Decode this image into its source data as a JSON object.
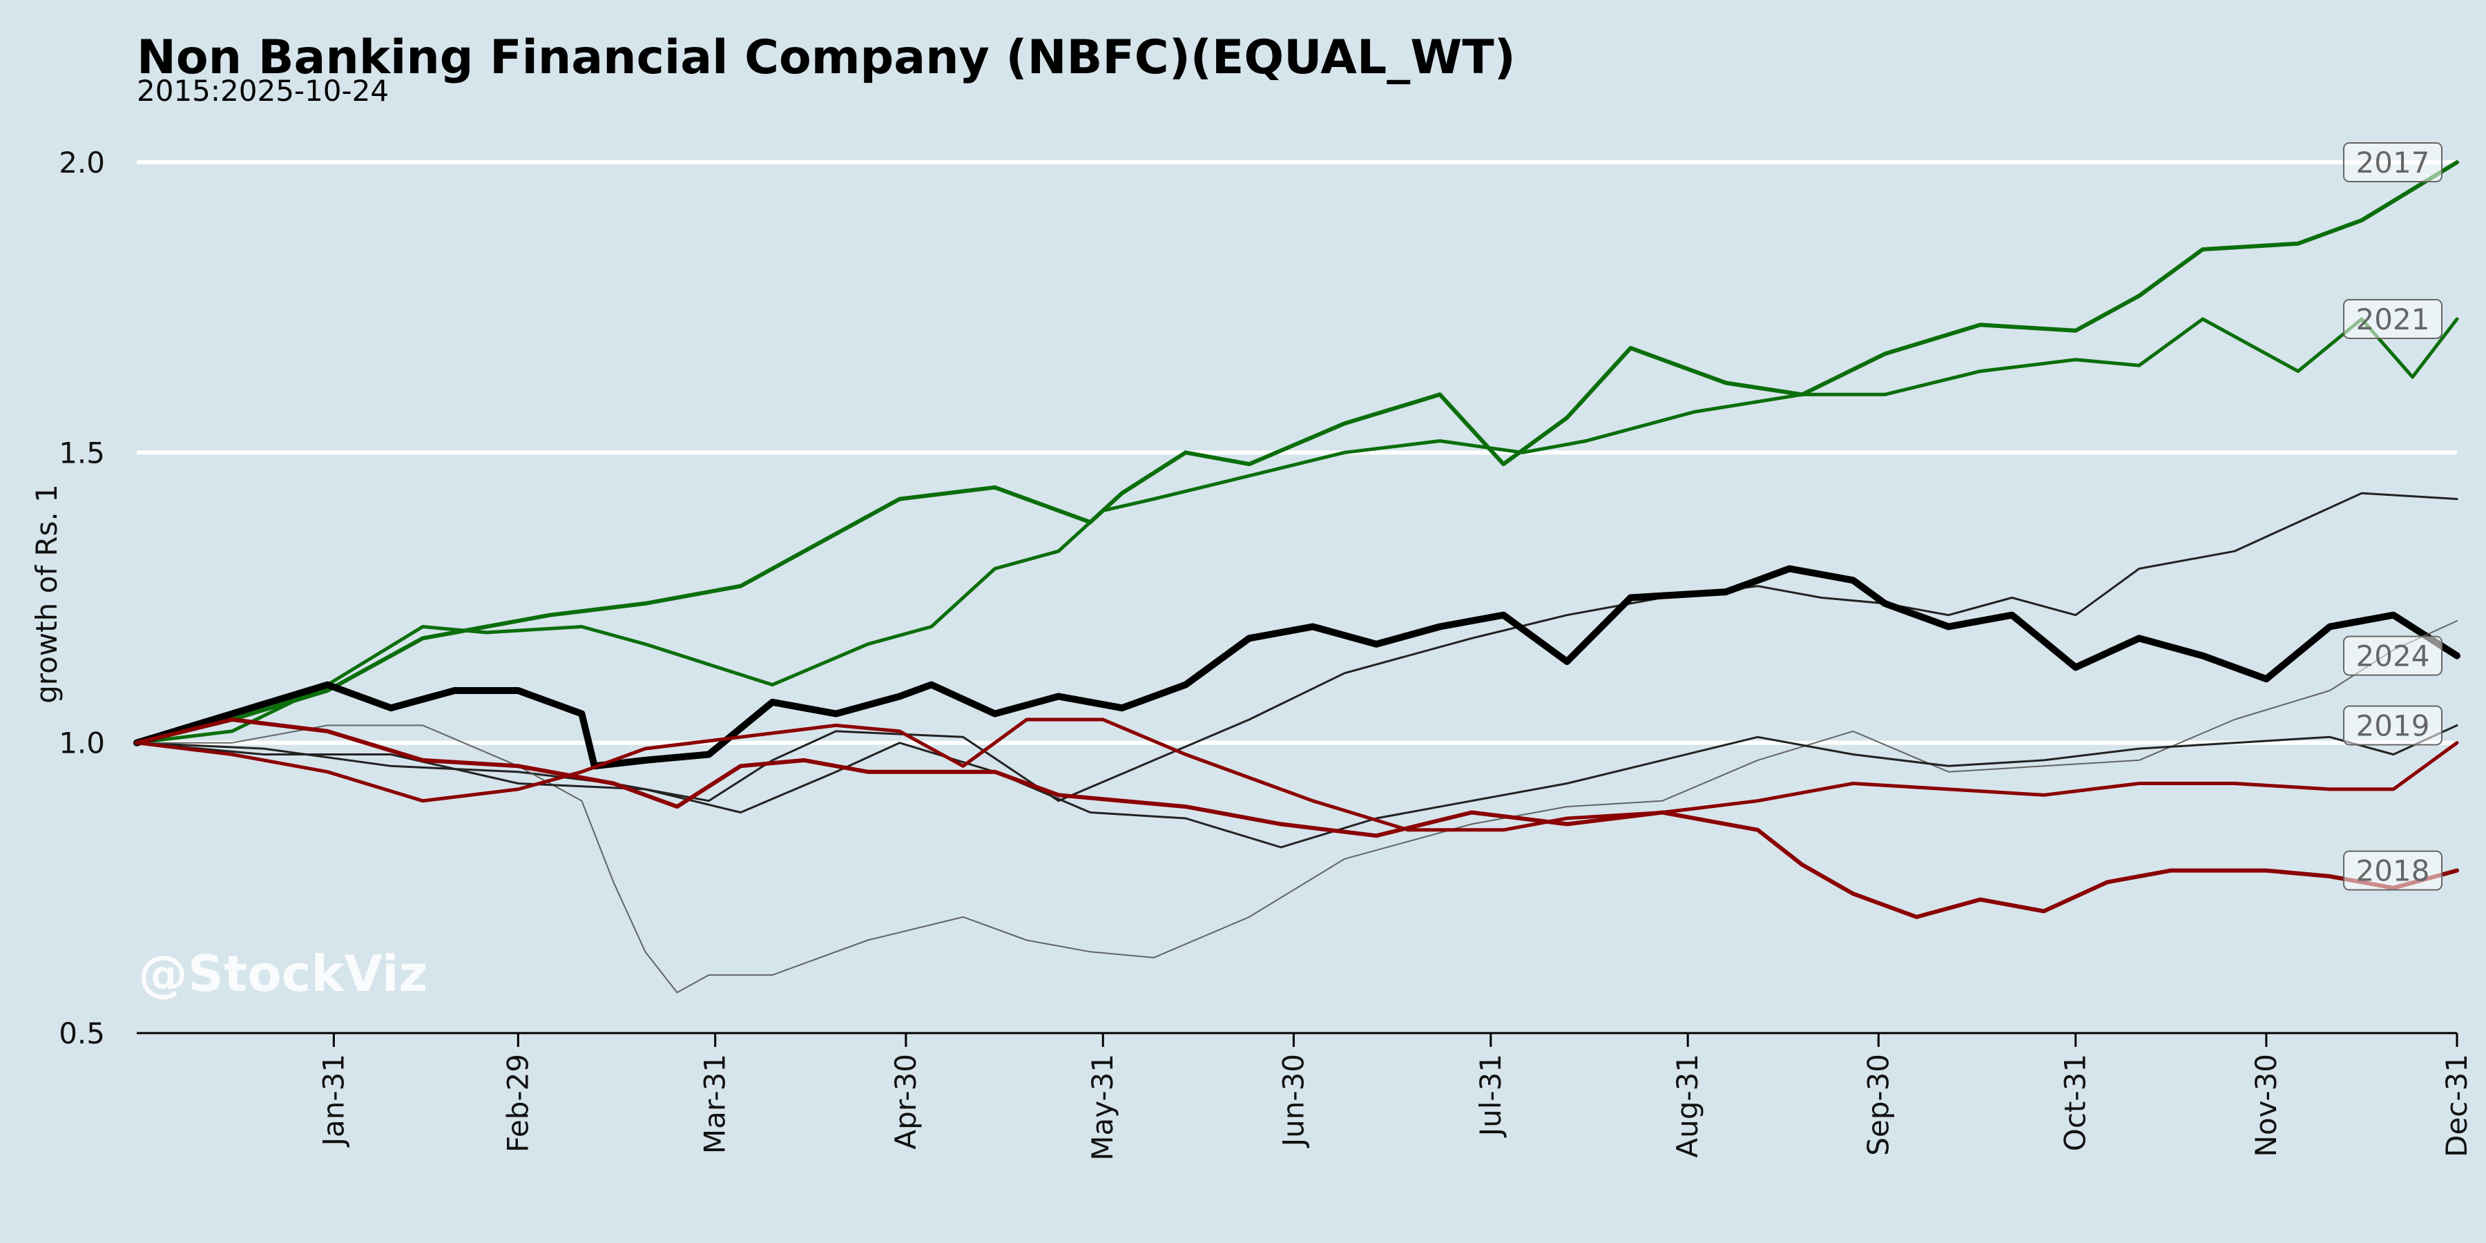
{
  "chart_data": {
    "type": "line",
    "title": "Non Banking Financial Company (NBFC)(EQUAL_WT)",
    "subtitle": "2015:2025-10-24",
    "ylabel": "growth of Rs. 1",
    "xlabel": "",
    "watermark": "@StockViz",
    "ylim": [
      0.5,
      2.05
    ],
    "yticks": [
      0.5,
      1.0,
      1.5,
      2.0
    ],
    "ytick_labels": [
      "0.5",
      "1.0",
      "1.5",
      "2.0"
    ],
    "gridlines": [
      1.0,
      1.5,
      2.0
    ],
    "xlim": [
      0,
      365
    ],
    "xticks": [
      31,
      60,
      91,
      121,
      152,
      182,
      213,
      244,
      274,
      305,
      335,
      365
    ],
    "xtick_labels": [
      "Jan-31",
      "Feb-29",
      "Mar-31",
      "Apr-30",
      "May-31",
      "Jun-30",
      "Jul-31",
      "Aug-31",
      "Sep-30",
      "Oct-31",
      "Nov-30",
      "Dec-31"
    ],
    "series": [
      {
        "name": "2017",
        "label_value": 2.0,
        "color": "#0b6e0b",
        "width": 6,
        "opacity": 1,
        "x": [
          0,
          15,
          30,
          45,
          55,
          65,
          80,
          95,
          110,
          120,
          135,
          150,
          155,
          165,
          175,
          190,
          205,
          215,
          225,
          235,
          250,
          262,
          275,
          290,
          305,
          315,
          325,
          340,
          350,
          365
        ],
        "y": [
          1.0,
          1.04,
          1.09,
          1.18,
          1.2,
          1.22,
          1.24,
          1.27,
          1.36,
          1.42,
          1.44,
          1.38,
          1.43,
          1.5,
          1.48,
          1.55,
          1.6,
          1.48,
          1.56,
          1.68,
          1.62,
          1.6,
          1.67,
          1.72,
          1.71,
          1.77,
          1.85,
          1.86,
          1.9,
          2.0
        ]
      },
      {
        "name": "2021",
        "label_value": 1.73,
        "color": "#0b6e0b",
        "width": 5,
        "opacity": 1,
        "x": [
          0,
          15,
          30,
          45,
          55,
          70,
          80,
          100,
          115,
          125,
          135,
          145,
          152,
          160,
          175,
          190,
          205,
          218,
          228,
          245,
          262,
          275,
          290,
          305,
          315,
          325,
          340,
          350,
          358,
          365
        ],
        "y": [
          1.0,
          1.02,
          1.1,
          1.2,
          1.19,
          1.2,
          1.17,
          1.1,
          1.17,
          1.2,
          1.3,
          1.33,
          1.4,
          1.42,
          1.46,
          1.5,
          1.52,
          1.5,
          1.52,
          1.57,
          1.6,
          1.6,
          1.64,
          1.66,
          1.65,
          1.73,
          1.64,
          1.73,
          1.63,
          1.73
        ]
      },
      {
        "name": "",
        "label_value": 1.42,
        "color": "#222222",
        "width": 3,
        "opacity": 1,
        "x": [
          0,
          20,
          40,
          60,
          75,
          90,
          100,
          110,
          130,
          145,
          160,
          175,
          190,
          210,
          225,
          240,
          255,
          265,
          275,
          285,
          295,
          305,
          315,
          330,
          340,
          350,
          365
        ],
        "y": [
          1.0,
          0.99,
          0.96,
          0.95,
          0.93,
          0.9,
          0.97,
          1.02,
          1.01,
          0.9,
          0.97,
          1.04,
          1.12,
          1.18,
          1.22,
          1.25,
          1.27,
          1.25,
          1.24,
          1.22,
          1.25,
          1.22,
          1.3,
          1.33,
          1.38,
          1.43,
          1.42
        ]
      },
      {
        "name": "2024",
        "label_value": 1.15,
        "color": "#000000",
        "width": 10,
        "opacity": 1,
        "x": [
          0,
          15,
          30,
          40,
          50,
          60,
          70,
          72,
          80,
          90,
          100,
          110,
          120,
          125,
          135,
          145,
          155,
          165,
          175,
          185,
          195,
          205,
          215,
          225,
          235,
          250,
          260,
          270,
          275,
          285,
          295,
          305,
          315,
          325,
          335,
          345,
          355,
          365
        ],
        "y": [
          1.0,
          1.05,
          1.1,
          1.06,
          1.09,
          1.09,
          1.05,
          0.96,
          0.97,
          0.98,
          1.07,
          1.05,
          1.08,
          1.1,
          1.05,
          1.08,
          1.06,
          1.1,
          1.18,
          1.2,
          1.17,
          1.2,
          1.22,
          1.14,
          1.25,
          1.26,
          1.3,
          1.28,
          1.24,
          1.2,
          1.22,
          1.13,
          1.18,
          1.15,
          1.11,
          1.2,
          1.22,
          1.15
        ]
      },
      {
        "name": "",
        "label_value": 1.21,
        "color": "#555555",
        "width": 2,
        "opacity": 0.9,
        "x": [
          0,
          15,
          30,
          45,
          60,
          70,
          75,
          80,
          85,
          90,
          100,
          115,
          130,
          140,
          150,
          160,
          175,
          190,
          210,
          225,
          240,
          255,
          270,
          285,
          300,
          315,
          330,
          345,
          355,
          365
        ],
        "y": [
          1.0,
          1.0,
          1.03,
          1.03,
          0.96,
          0.9,
          0.76,
          0.64,
          0.57,
          0.6,
          0.6,
          0.66,
          0.7,
          0.66,
          0.64,
          0.63,
          0.7,
          0.8,
          0.86,
          0.89,
          0.9,
          0.97,
          1.02,
          0.95,
          0.96,
          0.97,
          1.04,
          1.09,
          1.16,
          1.21
        ]
      },
      {
        "name": "2019",
        "label_value": 1.03,
        "color": "#222222",
        "width": 3,
        "opacity": 1,
        "x": [
          0,
          20,
          40,
          60,
          80,
          95,
          110,
          120,
          135,
          150,
          165,
          180,
          195,
          210,
          225,
          240,
          255,
          270,
          285,
          300,
          315,
          330,
          345,
          355,
          365
        ],
        "y": [
          1.0,
          0.98,
          0.98,
          0.93,
          0.92,
          0.88,
          0.95,
          1.0,
          0.95,
          0.88,
          0.87,
          0.82,
          0.87,
          0.9,
          0.93,
          0.97,
          1.01,
          0.98,
          0.96,
          0.97,
          0.99,
          1.0,
          1.01,
          0.98,
          1.03
        ]
      },
      {
        "name": "",
        "label_value": 1.0,
        "color": "#8b0000",
        "width": 5,
        "opacity": 1,
        "x": [
          0,
          15,
          30,
          45,
          60,
          70,
          80,
          95,
          110,
          120,
          130,
          140,
          152,
          165,
          175,
          185,
          200,
          215,
          225,
          240,
          255,
          270,
          285,
          300,
          315,
          330,
          345,
          355,
          365
        ],
        "y": [
          1.0,
          0.98,
          0.95,
          0.9,
          0.92,
          0.95,
          0.99,
          1.01,
          1.03,
          1.02,
          0.96,
          1.04,
          1.04,
          0.98,
          0.94,
          0.9,
          0.85,
          0.85,
          0.87,
          0.88,
          0.9,
          0.93,
          0.92,
          0.91,
          0.93,
          0.93,
          0.92,
          0.92,
          1.0
        ]
      },
      {
        "name": "2018",
        "label_value": 0.78,
        "color": "#8b0000",
        "width": 6,
        "opacity": 1,
        "x": [
          0,
          15,
          30,
          45,
          60,
          75,
          85,
          95,
          105,
          115,
          125,
          135,
          145,
          155,
          165,
          180,
          195,
          210,
          225,
          240,
          255,
          262,
          270,
          280,
          290,
          300,
          310,
          320,
          335,
          345,
          355,
          365
        ],
        "y": [
          1.0,
          1.04,
          1.02,
          0.97,
          0.96,
          0.93,
          0.89,
          0.96,
          0.97,
          0.95,
          0.95,
          0.95,
          0.91,
          0.9,
          0.89,
          0.86,
          0.84,
          0.88,
          0.86,
          0.88,
          0.85,
          0.79,
          0.74,
          0.7,
          0.73,
          0.71,
          0.76,
          0.78,
          0.78,
          0.77,
          0.75,
          0.78
        ]
      }
    ]
  }
}
